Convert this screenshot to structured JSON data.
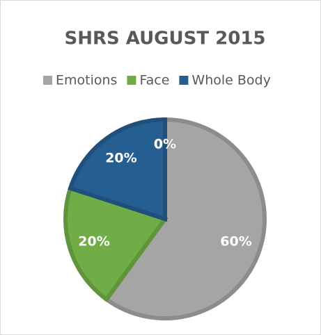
{
  "chart_data": {
    "type": "pie",
    "title": "SHRS AUGUST 2015",
    "categories": [
      "Emotions",
      "Face",
      "Whole Body",
      null
    ],
    "values": [
      60,
      20,
      20,
      0
    ],
    "value_labels": [
      "60%",
      "20%",
      "20%",
      "0%"
    ],
    "colors": [
      "#a5a5a5",
      "#70ad47",
      "#255e91",
      null
    ],
    "legend": "top"
  }
}
